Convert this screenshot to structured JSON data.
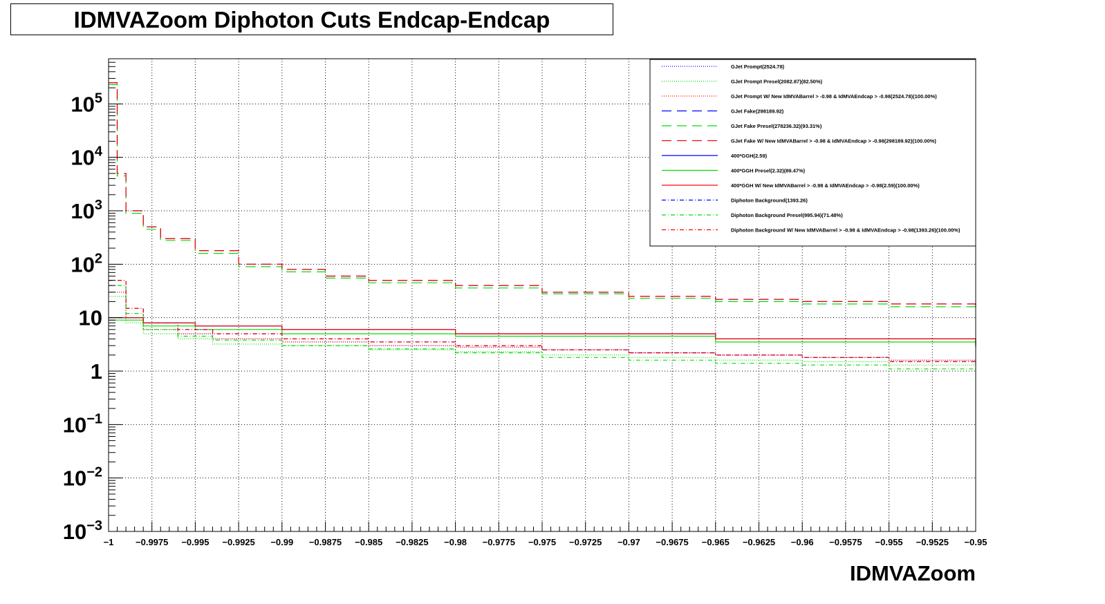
{
  "chart_data": {
    "type": "line",
    "title": "IDMVAZoom Diphoton Cuts Endcap-Endcap",
    "xlabel": "IDMVAZoom",
    "ylabel": "",
    "xlim": [
      -1.0,
      -0.95
    ],
    "ylim": [
      0.001,
      700000
    ],
    "y_scale": "log",
    "grid": true,
    "legend_position": "top-right",
    "x_ticks": [
      {
        "v": -1.0,
        "label": "−1"
      },
      {
        "v": -0.9975,
        "label": "−0.9975"
      },
      {
        "v": -0.995,
        "label": "−0.995"
      },
      {
        "v": -0.9925,
        "label": "−0.9925"
      },
      {
        "v": -0.99,
        "label": "−0.99"
      },
      {
        "v": -0.9875,
        "label": "−0.9875"
      },
      {
        "v": -0.985,
        "label": "−0.985"
      },
      {
        "v": -0.9825,
        "label": "−0.9825"
      },
      {
        "v": -0.98,
        "label": "−0.98"
      },
      {
        "v": -0.9775,
        "label": "−0.9775"
      },
      {
        "v": -0.975,
        "label": "−0.975"
      },
      {
        "v": -0.9725,
        "label": "−0.9725"
      },
      {
        "v": -0.97,
        "label": "−0.97"
      },
      {
        "v": -0.9675,
        "label": "−0.9675"
      },
      {
        "v": -0.965,
        "label": "−0.965"
      },
      {
        "v": -0.9625,
        "label": "−0.9625"
      },
      {
        "v": -0.96,
        "label": "−0.96"
      },
      {
        "v": -0.9575,
        "label": "−0.9575"
      },
      {
        "v": -0.955,
        "label": "−0.955"
      },
      {
        "v": -0.9525,
        "label": "−0.9525"
      },
      {
        "v": -0.95,
        "label": "−0.95"
      }
    ],
    "y_ticks": [
      {
        "v": 100000,
        "base": "10",
        "exp": "5"
      },
      {
        "v": 10000,
        "base": "10",
        "exp": "4"
      },
      {
        "v": 1000,
        "base": "10",
        "exp": "3"
      },
      {
        "v": 100,
        "base": "10",
        "exp": "2"
      },
      {
        "v": 10,
        "base": "10",
        "exp": ""
      },
      {
        "v": 1,
        "base": "1",
        "exp": ""
      },
      {
        "v": 0.1,
        "base": "10",
        "exp": "−1"
      },
      {
        "v": 0.01,
        "base": "10",
        "exp": "−2"
      },
      {
        "v": 0.001,
        "base": "10",
        "exp": "−3"
      }
    ],
    "series": [
      {
        "name": "GJet Prompt(2524.78)",
        "color": "#0000ff",
        "dash": "dotted",
        "x": [
          -1.0,
          -0.999,
          -0.998,
          -0.996,
          -0.994,
          -0.99,
          -0.985,
          -0.98,
          -0.975,
          -0.97,
          -0.965,
          -0.96,
          -0.955,
          -0.95
        ],
        "y": [
          30,
          10,
          6,
          5,
          4,
          3.5,
          3,
          2.8,
          2.5,
          2.2,
          2.0,
          1.8,
          1.6,
          1.5
        ]
      },
      {
        "name": "GJet Prompt Presel(2082.87)(82.50%)",
        "color": "#00dd00",
        "dash": "dotted",
        "x": [
          -1.0,
          -0.999,
          -0.998,
          -0.996,
          -0.994,
          -0.99,
          -0.985,
          -0.98,
          -0.975,
          -0.97,
          -0.965,
          -0.96,
          -0.955,
          -0.95
        ],
        "y": [
          25,
          8,
          5,
          4,
          3.2,
          3,
          2.5,
          2.3,
          2.0,
          1.8,
          1.6,
          1.5,
          1.3,
          1.2
        ]
      },
      {
        "name": "GJet Prompt W/ New IdMVABarrel > -0.98 & IdMVAEndcap > -0.98(2524.78)(100.00%)",
        "color": "#ff0000",
        "dash": "dotted",
        "x": [
          -1.0,
          -0.999,
          -0.998,
          -0.996,
          -0.994,
          -0.99,
          -0.985,
          -0.98,
          -0.975,
          -0.97,
          -0.965,
          -0.96,
          -0.955,
          -0.95
        ],
        "y": [
          30,
          10,
          6,
          5,
          4,
          3.5,
          3,
          2.8,
          2.5,
          2.2,
          2.0,
          1.8,
          1.6,
          1.5
        ]
      },
      {
        "name": "GJet Fake(298189.92)",
        "color": "#0000ff",
        "dash": "long",
        "x": [
          -1.0,
          -0.9995,
          -0.999,
          -0.998,
          -0.997,
          -0.995,
          -0.9925,
          -0.99,
          -0.9875,
          -0.985,
          -0.98,
          -0.975,
          -0.97,
          -0.965,
          -0.96,
          -0.955,
          -0.95
        ],
        "y": [
          250000,
          5000,
          1000,
          500,
          300,
          180,
          100,
          80,
          60,
          50,
          40,
          30,
          25,
          22,
          20,
          18,
          15
        ]
      },
      {
        "name": "GJet Fake Presel(278236.32)(93.31%)",
        "color": "#00dd00",
        "dash": "long",
        "x": [
          -1.0,
          -0.9995,
          -0.999,
          -0.998,
          -0.997,
          -0.995,
          -0.9925,
          -0.99,
          -0.9875,
          -0.985,
          -0.98,
          -0.975,
          -0.97,
          -0.965,
          -0.96,
          -0.955,
          -0.95
        ],
        "y": [
          230000,
          4500,
          900,
          450,
          280,
          160,
          90,
          72,
          55,
          45,
          36,
          28,
          23,
          20,
          18,
          16,
          14
        ]
      },
      {
        "name": "GJet Fake W/ New IdMVABarrel > -0.98 & IdMVAEndcap > -0.98(298189.92)(100.00%)",
        "color": "#ff0000",
        "dash": "long",
        "x": [
          -1.0,
          -0.9995,
          -0.999,
          -0.998,
          -0.997,
          -0.995,
          -0.9925,
          -0.99,
          -0.9875,
          -0.985,
          -0.98,
          -0.975,
          -0.97,
          -0.965,
          -0.96,
          -0.955,
          -0.95
        ],
        "y": [
          250000,
          5000,
          1000,
          500,
          300,
          180,
          100,
          80,
          60,
          50,
          40,
          30,
          25,
          22,
          20,
          18,
          15
        ]
      },
      {
        "name": "400*GGH(2.59)",
        "color": "#0000ff",
        "dash": "solid",
        "x": [
          -1.0,
          -0.998,
          -0.995,
          -0.99,
          -0.985,
          -0.98,
          -0.975,
          -0.97,
          -0.965,
          -0.96,
          -0.955,
          -0.95
        ],
        "y": [
          10,
          8,
          7,
          6,
          6,
          5,
          5,
          5,
          4,
          4,
          4,
          3
        ]
      },
      {
        "name": "400*GGH Presel(2.32)(89.47%)",
        "color": "#00dd00",
        "dash": "solid",
        "x": [
          -1.0,
          -0.998,
          -0.995,
          -0.99,
          -0.985,
          -0.98,
          -0.975,
          -0.97,
          -0.965,
          -0.96,
          -0.955,
          -0.95
        ],
        "y": [
          9,
          7,
          6,
          5,
          5,
          4.5,
          4.5,
          4.5,
          3.5,
          3.5,
          3.5,
          2.7
        ]
      },
      {
        "name": "400*GGH W/ New IdMVABarrel > -0.98 & IdMVAEndcap > -0.98(2.59)(100.00%)",
        "color": "#ff0000",
        "dash": "solid",
        "x": [
          -1.0,
          -0.998,
          -0.995,
          -0.99,
          -0.985,
          -0.98,
          -0.975,
          -0.97,
          -0.965,
          -0.96,
          -0.955,
          -0.95
        ],
        "y": [
          10,
          8,
          7,
          6,
          6,
          5,
          5,
          5,
          4,
          4,
          4,
          3
        ]
      },
      {
        "name": "Diphoton Background(1393.26)",
        "color": "#0000ff",
        "dash": "dashdot",
        "x": [
          -1.0,
          -0.999,
          -0.998,
          -0.996,
          -0.994,
          -0.99,
          -0.985,
          -0.98,
          -0.975,
          -0.97,
          -0.965,
          -0.96,
          -0.955,
          -0.95
        ],
        "y": [
          50,
          15,
          8,
          6,
          5,
          4,
          3.5,
          3,
          2.5,
          2.2,
          2,
          1.8,
          1.5,
          1.3
        ]
      },
      {
        "name": "Diphoton Background Presel(995.94)(71.48%)",
        "color": "#00dd00",
        "dash": "dashdot",
        "x": [
          -1.0,
          -0.999,
          -0.998,
          -0.996,
          -0.994,
          -0.99,
          -0.985,
          -0.98,
          -0.975,
          -0.97,
          -0.965,
          -0.96,
          -0.955,
          -0.95
        ],
        "y": [
          40,
          12,
          6,
          4.5,
          3.8,
          3,
          2.6,
          2.2,
          1.8,
          1.6,
          1.4,
          1.3,
          1.1,
          1.0
        ]
      },
      {
        "name": "Diphoton Background W/ New IdMVABarrel > -0.98 & IdMVAEndcap > -0.98(1393.26)(100.00%)",
        "color": "#ff0000",
        "dash": "dashdot",
        "x": [
          -1.0,
          -0.999,
          -0.998,
          -0.996,
          -0.994,
          -0.99,
          -0.985,
          -0.98,
          -0.975,
          -0.97,
          -0.965,
          -0.96,
          -0.955,
          -0.95
        ],
        "y": [
          50,
          15,
          8,
          6,
          5,
          4,
          3.5,
          3,
          2.5,
          2.2,
          2,
          1.8,
          1.5,
          1.3
        ]
      }
    ]
  }
}
